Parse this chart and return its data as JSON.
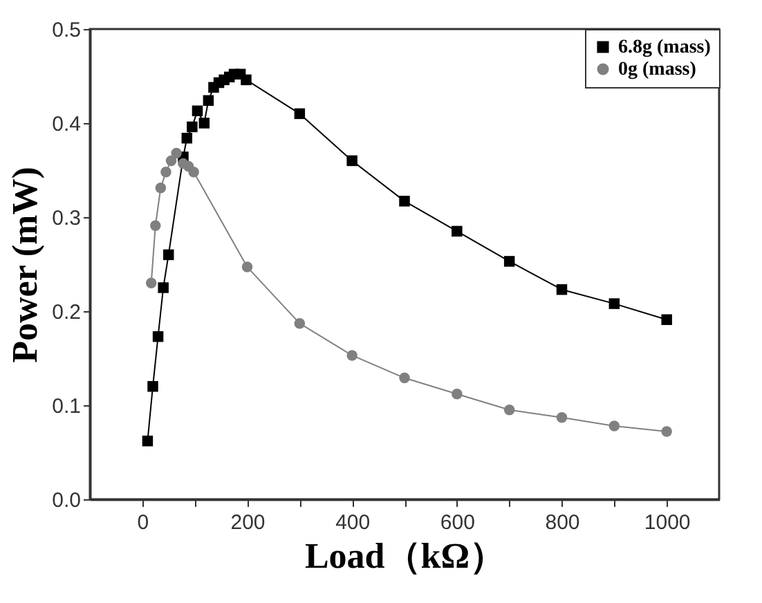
{
  "chart_data": {
    "type": "line",
    "xlabel": "Load（kΩ）",
    "ylabel": "Power (mW)",
    "xlim": [
      -100,
      1100
    ],
    "xticks": [
      0,
      {
        "value": 100,
        "label": null
      },
      200,
      {
        "value": 300,
        "label": null
      },
      400,
      {
        "value": 500,
        "label": null
      },
      600,
      {
        "value": 700,
        "label": null
      },
      800,
      {
        "value": 900,
        "label": null
      },
      1000
    ],
    "ylim": [
      0,
      0.5
    ],
    "yticks": [
      {
        "value": 0,
        "label": "0.0"
      },
      0.1,
      0.2,
      0.3,
      0.4,
      0.5
    ],
    "legend": "top right",
    "grid": false,
    "series": [
      {
        "name": "6.8g (mass)",
        "color": "#000000",
        "marker": "square",
        "line_style": "solid",
        "x": [
          10,
          20,
          30,
          40,
          50,
          78,
          85,
          95,
          105,
          118,
          126,
          136,
          146,
          156,
          166,
          175,
          187,
          198,
          300,
          400,
          500,
          600,
          700,
          800,
          900,
          1000
        ],
        "values": [
          0.062,
          0.12,
          0.173,
          0.225,
          0.26,
          0.364,
          0.384,
          0.396,
          0.413,
          0.4,
          0.424,
          0.438,
          0.443,
          0.446,
          0.449,
          0.452,
          0.452,
          0.446,
          0.41,
          0.36,
          0.317,
          0.285,
          0.253,
          0.223,
          0.208,
          0.191
        ]
      },
      {
        "name": "0g (mass)",
        "color": "#808080",
        "marker": "circle",
        "line_style": "solid",
        "x": [
          17,
          25,
          35,
          45,
          55,
          65,
          78,
          88,
          98,
          200,
          300,
          400,
          500,
          600,
          700,
          800,
          900,
          1000
        ],
        "values": [
          0.23,
          0.291,
          0.331,
          0.348,
          0.36,
          0.368,
          0.357,
          0.354,
          0.348,
          0.247,
          0.187,
          0.153,
          0.129,
          0.112,
          0.095,
          0.087,
          0.078,
          0.072
        ]
      }
    ]
  }
}
